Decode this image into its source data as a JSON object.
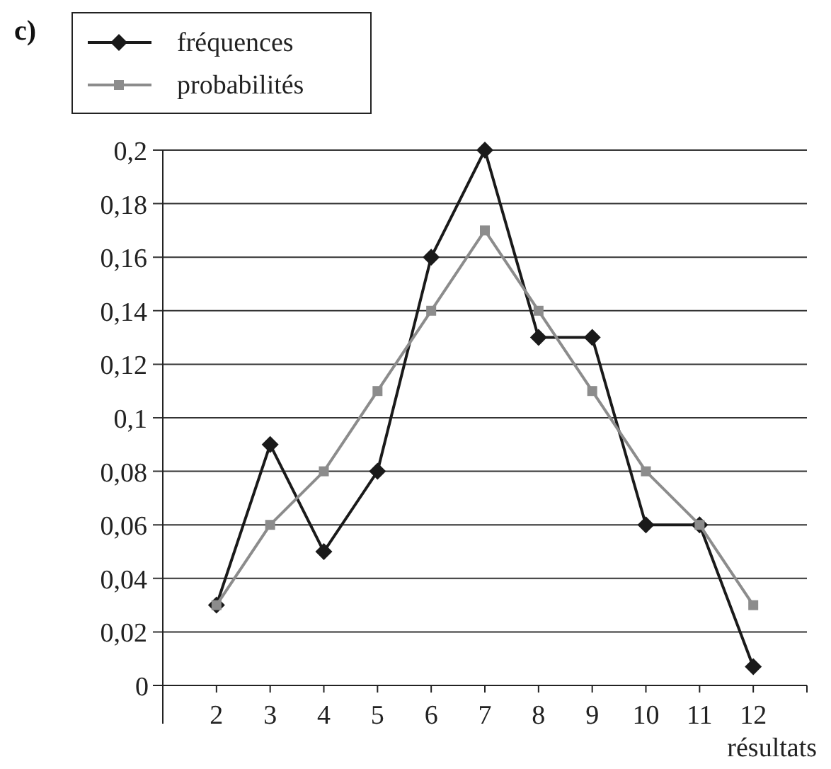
{
  "chart_data": {
    "type": "line",
    "x": [
      2,
      3,
      4,
      5,
      6,
      7,
      8,
      9,
      10,
      11,
      12
    ],
    "xlim": [
      1,
      13
    ],
    "xticks": [
      2,
      3,
      4,
      5,
      6,
      7,
      8,
      9,
      10,
      11,
      12
    ],
    "xlabel": "résultats",
    "ylim": [
      0,
      0.2
    ],
    "yticks": [
      {
        "value": 0,
        "label": "0"
      },
      {
        "value": 0.02,
        "label": "0,02"
      },
      {
        "value": 0.04,
        "label": "0,04"
      },
      {
        "value": 0.06,
        "label": "0,06"
      },
      {
        "value": 0.08,
        "label": "0,08"
      },
      {
        "value": 0.1,
        "label": "0,1"
      },
      {
        "value": 0.12,
        "label": "0,12"
      },
      {
        "value": 0.14,
        "label": "0,14"
      },
      {
        "value": 0.16,
        "label": "0,16"
      },
      {
        "value": 0.18,
        "label": "0,18"
      },
      {
        "value": 0.2,
        "label": "0,2"
      }
    ],
    "grid": "y",
    "legend": "top left",
    "line_style": "solid",
    "annotations": [
      "c)"
    ],
    "series": [
      {
        "name": "fréquences",
        "color": "#1a1a1a",
        "marker": "diamond",
        "values": [
          0.03,
          0.09,
          0.05,
          0.08,
          0.16,
          0.2,
          0.13,
          0.13,
          0.06,
          0.06,
          0.007
        ]
      },
      {
        "name": "probabilités",
        "color": "#8c8c8c",
        "marker": "square",
        "values": [
          0.03,
          0.06,
          0.08,
          0.11,
          0.14,
          0.17,
          0.14,
          0.11,
          0.08,
          0.06,
          0.03
        ]
      }
    ]
  }
}
